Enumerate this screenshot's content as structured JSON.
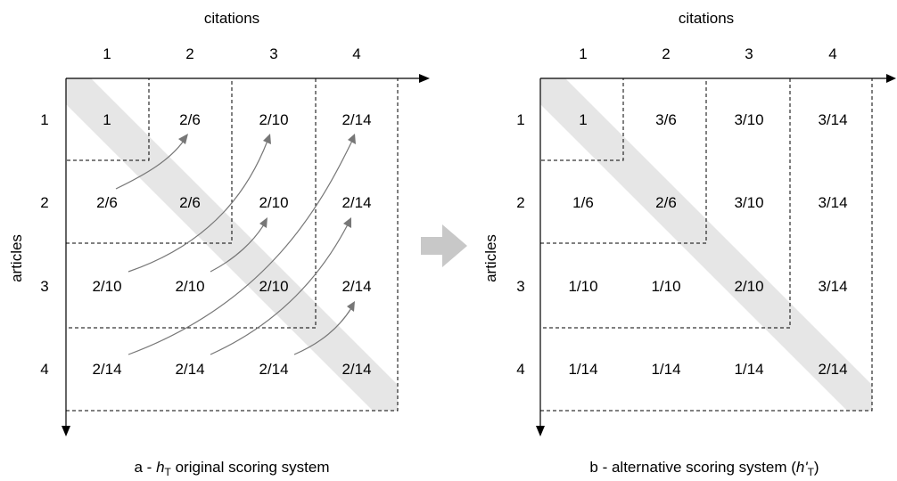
{
  "panels": [
    {
      "col_axis_label": "citations",
      "row_axis_label": "articles",
      "col_ticks": [
        "1",
        "2",
        "3",
        "4"
      ],
      "row_ticks": [
        "1",
        "2",
        "3",
        "4"
      ],
      "cells": [
        [
          "1",
          "2/6",
          "2/10",
          "2/14"
        ],
        [
          "2/6",
          "2/6",
          "2/10",
          "2/14"
        ],
        [
          "2/10",
          "2/10",
          "2/10",
          "2/14"
        ],
        [
          "2/14",
          "2/14",
          "2/14",
          "2/14"
        ]
      ],
      "caption_prefix": "a - ",
      "caption_symbol": "h",
      "caption_subscript": "T",
      "caption_suffix": " original scoring system"
    },
    {
      "col_axis_label": "citations",
      "row_axis_label": "articles",
      "col_ticks": [
        "1",
        "2",
        "3",
        "4"
      ],
      "row_ticks": [
        "1",
        "2",
        "3",
        "4"
      ],
      "cells": [
        [
          "1",
          "3/6",
          "3/10",
          "3/14"
        ],
        [
          "1/6",
          "2/6",
          "3/10",
          "3/14"
        ],
        [
          "1/10",
          "1/10",
          "2/10",
          "3/14"
        ],
        [
          "1/14",
          "1/14",
          "1/14",
          "2/14"
        ]
      ],
      "caption_prefix": "b - alternative scoring system (",
      "caption_symbol": "h'",
      "caption_subscript": "T",
      "caption_suffix": ")"
    }
  ],
  "colors": {
    "diagonal_band": "#e6e6e6",
    "arrow": "#777777",
    "transition_arrow": "#c8c8c8"
  }
}
